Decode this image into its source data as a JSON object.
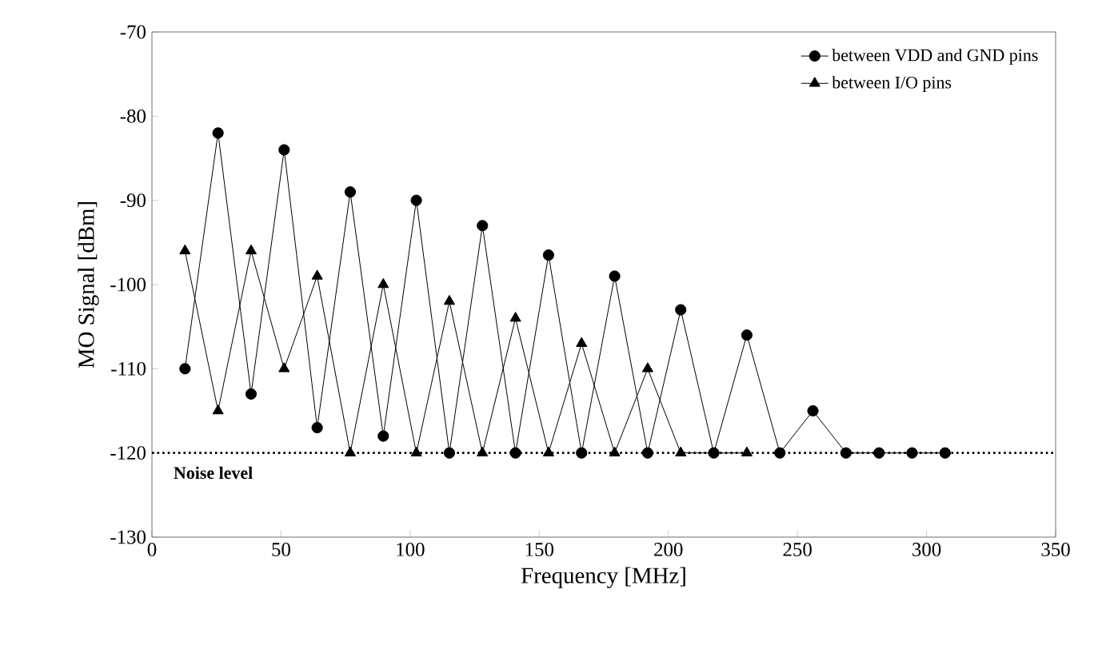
{
  "chart_data": {
    "type": "line",
    "xlabel": "Frequency [MHz]",
    "ylabel": "MO Signal [dBm]",
    "xlim": [
      0,
      350
    ],
    "xticks": [
      0,
      50,
      100,
      150,
      200,
      250,
      300,
      350
    ],
    "ylim": [
      -130,
      -70
    ],
    "yticks": [
      -130,
      -120,
      -110,
      -100,
      -90,
      -80,
      -70
    ],
    "legend": "top right",
    "line_style": "solid",
    "series": [
      {
        "name": "between VDD and GND pins",
        "color": "#000000",
        "marker": "circle",
        "x": [
          12.8,
          25.6,
          38.4,
          51.2,
          64,
          76.8,
          89.6,
          102.4,
          115.2,
          128,
          140.8,
          153.6,
          166.4,
          179.2,
          192,
          204.8,
          217.6,
          230.4,
          243.2,
          256,
          268.8,
          281.6,
          294.4,
          307.2
        ],
        "values": [
          -110,
          -82,
          -113,
          -84,
          -117,
          -89,
          -118,
          -90,
          -120,
          -93,
          -120,
          -96.5,
          -120,
          -99,
          -120,
          -103,
          -120,
          -106,
          -120,
          -115,
          -120,
          -120,
          -120,
          -120
        ]
      },
      {
        "name": "between I/O pins",
        "color": "#000000",
        "marker": "triangle",
        "x": [
          12.8,
          25.6,
          38.4,
          51.2,
          64,
          76.8,
          89.6,
          102.4,
          115.2,
          128,
          140.8,
          153.6,
          166.4,
          179.2,
          192,
          204.8,
          217.6,
          230.4
        ],
        "values": [
          -96,
          -115,
          -96,
          -110,
          -99,
          -120,
          -100,
          -120,
          -102,
          -120,
          -104,
          -120,
          -107,
          -120,
          -110,
          -120,
          null,
          -120
        ]
      }
    ],
    "ref_lines": [
      {
        "axis": "y",
        "value": -120,
        "label": "Noise level",
        "line_style": "dotted",
        "color": "#000000"
      }
    ]
  }
}
